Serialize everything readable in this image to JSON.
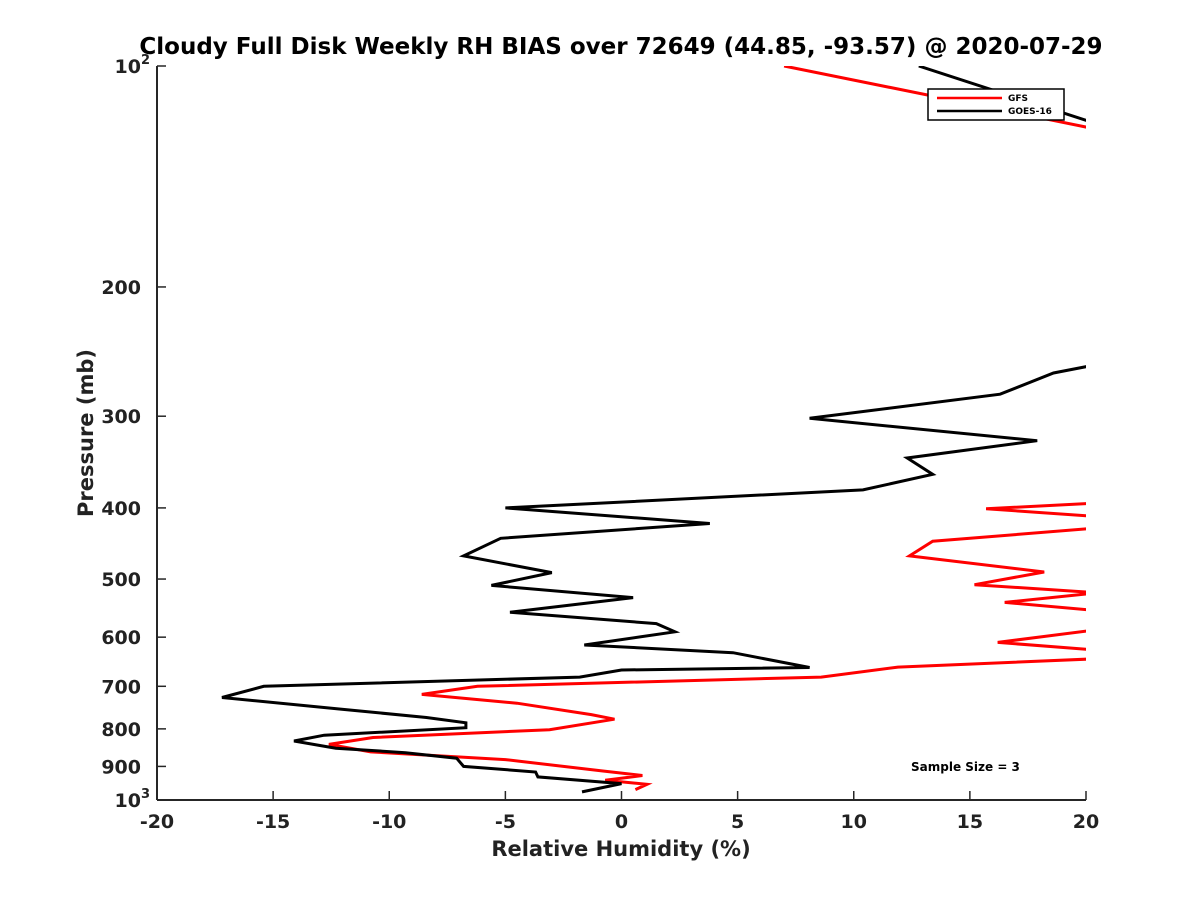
{
  "chart_data": {
    "type": "line",
    "title": "Cloudy Full Disk Weekly RH BIAS over 72649 (44.85, -93.57) @ 2020-07-29",
    "xlabel": "Relative Humidity (%)",
    "ylabel": "Pressure (mb)",
    "xlim": [
      -20,
      20
    ],
    "ylim": [
      100,
      1000
    ],
    "y_scale": "log",
    "y_reversed": true,
    "xticks": [
      -20,
      -15,
      -10,
      -5,
      0,
      5,
      10,
      15,
      20
    ],
    "xtick_labels": [
      "-20",
      "-15",
      "-10",
      "-5",
      "0",
      "5",
      "10",
      "15",
      "20"
    ],
    "yticks": [
      100,
      200,
      300,
      400,
      500,
      600,
      700,
      800,
      900,
      1000
    ],
    "ytick_labels": [
      {
        "base": "10",
        "sup": "2"
      },
      {
        "base": "200"
      },
      {
        "base": "300"
      },
      {
        "base": "400"
      },
      {
        "base": "500"
      },
      {
        "base": "600"
      },
      {
        "base": "700"
      },
      {
        "base": "800"
      },
      {
        "base": "900"
      },
      {
        "base": "10",
        "sup": "3"
      }
    ],
    "grid": false,
    "legend_position": "top-right",
    "annotation": "Sample Size = 3",
    "series": [
      {
        "name": "GFS",
        "color": "#ff0000",
        "points": [
          [
            7.0,
            100
          ],
          [
            20.5,
            122
          ],
          [
            20.5,
            394
          ],
          [
            15.7,
            401
          ],
          [
            20.5,
            411
          ],
          [
            20.5,
            426
          ],
          [
            13.4,
            444
          ],
          [
            12.4,
            465
          ],
          [
            18.2,
            489
          ],
          [
            15.2,
            509
          ],
          [
            20.5,
            522
          ],
          [
            16.5,
            538
          ],
          [
            20.5,
            552
          ],
          [
            20.5,
            586
          ],
          [
            16.2,
            610
          ],
          [
            20.0,
            623
          ],
          [
            20.5,
            630
          ],
          [
            20.5,
            642
          ],
          [
            11.9,
            659
          ],
          [
            8.6,
            680
          ],
          [
            -6.2,
            700
          ],
          [
            -8.6,
            718
          ],
          [
            -4.5,
            738
          ],
          [
            -1.3,
            765
          ],
          [
            -0.3,
            776
          ],
          [
            -3.1,
            802
          ],
          [
            -10.7,
            822
          ],
          [
            -12.6,
            840
          ],
          [
            -10.8,
            860
          ],
          [
            -5.0,
            881
          ],
          [
            -0.8,
            913
          ],
          [
            0.9,
            926
          ],
          [
            -0.7,
            940
          ],
          [
            1.1,
            952
          ],
          [
            0.6,
            968
          ]
        ]
      },
      {
        "name": "GOES-16",
        "color": "#000000",
        "points": [
          [
            12.8,
            100
          ],
          [
            20.5,
            120
          ],
          [
            20.5,
            255
          ],
          [
            18.6,
            262
          ],
          [
            16.3,
            280
          ],
          [
            8.1,
            302
          ],
          [
            17.9,
            324
          ],
          [
            12.3,
            342
          ],
          [
            13.4,
            360
          ],
          [
            10.4,
            378
          ],
          [
            -5.0,
            400
          ],
          [
            3.8,
            420
          ],
          [
            -5.2,
            440
          ],
          [
            -6.8,
            465
          ],
          [
            -3.0,
            490
          ],
          [
            -5.6,
            510
          ],
          [
            0.5,
            530
          ],
          [
            -4.8,
            555
          ],
          [
            1.5,
            575
          ],
          [
            2.3,
            590
          ],
          [
            -1.6,
            615
          ],
          [
            4.8,
            630
          ],
          [
            8.1,
            660
          ],
          [
            0.0,
            665
          ],
          [
            -1.8,
            680
          ],
          [
            -15.4,
            700
          ],
          [
            -17.2,
            725
          ],
          [
            -12.1,
            752
          ],
          [
            -8.4,
            772
          ],
          [
            -6.7,
            785
          ],
          [
            -6.7,
            797
          ],
          [
            -12.8,
            816
          ],
          [
            -14.1,
            831
          ],
          [
            -12.3,
            850
          ],
          [
            -9.3,
            862
          ],
          [
            -7.1,
            877
          ],
          [
            -6.8,
            900
          ],
          [
            -3.7,
            916
          ],
          [
            -3.6,
            930
          ],
          [
            0.0,
            950
          ],
          [
            -1.7,
            975
          ]
        ]
      }
    ]
  }
}
